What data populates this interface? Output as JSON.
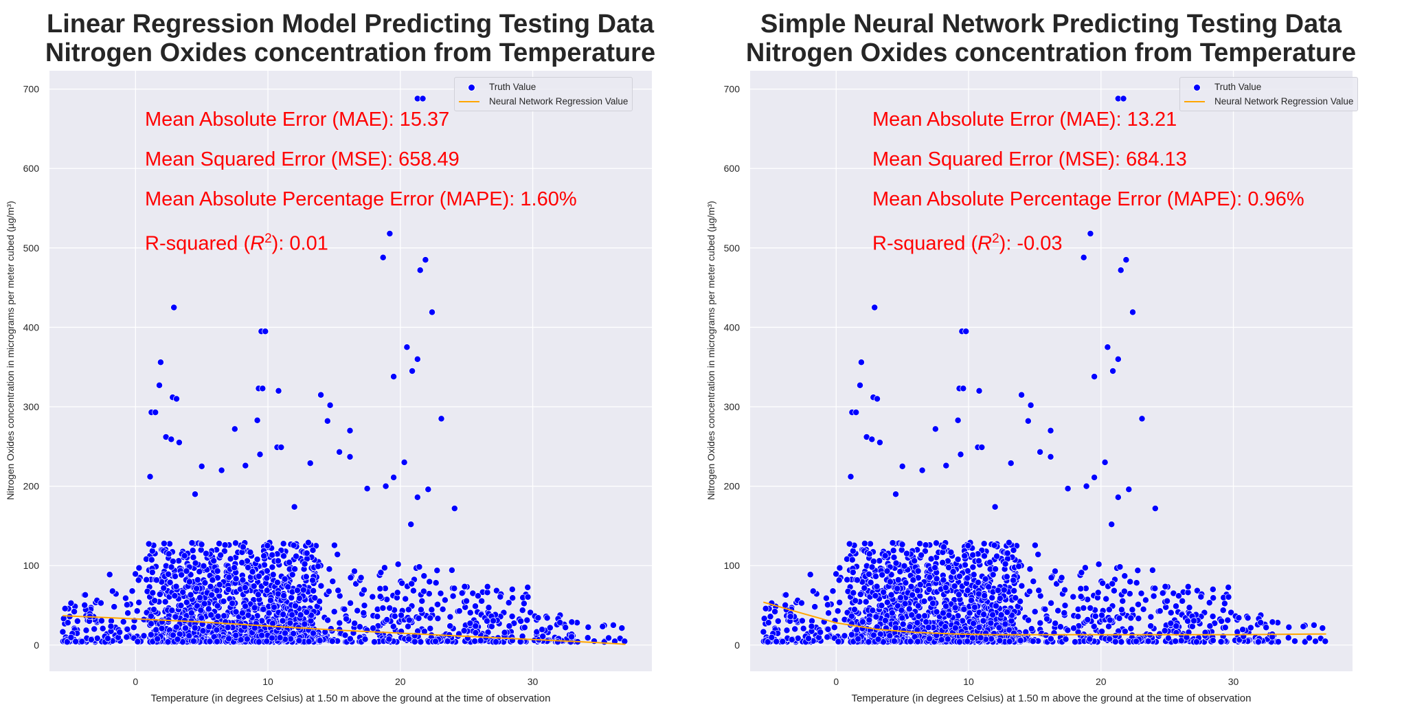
{
  "panels": [
    {
      "title_line1": "Linear Regression Model Predicting Testing Data",
      "title_line2": "Nitrogen Oxides concentration from Temperature",
      "xlabel": "Temperature (in degrees Celsius) at 1.50 m above the ground at the time of observation",
      "ylabel": "Nitrogen Oxides concentration in micrograms per meter cubed (µg/m³)",
      "legend": {
        "truth": "Truth Value",
        "regression": "Neural Network Regression Value"
      },
      "metrics": {
        "mae": "Mean Absolute Error (MAE): 15.37",
        "mse": "Mean Squared Error (MSE): 658.49",
        "mape": "Mean Absolute Percentage Error (MAPE): 1.60%",
        "r2_prefix": "R-squared (",
        "r2_var": "R",
        "r2_exp": "2",
        "r2_suffix": "): 0.01"
      }
    },
    {
      "title_line1": "Simple Neural Network Predicting Testing Data",
      "title_line2": "Nitrogen Oxides concentration from Temperature",
      "xlabel": "Temperature (in degrees Celsius) at 1.50 m above the ground at the time of observation",
      "ylabel": "Nitrogen Oxides concentration in micrograms per meter cubed (µg/m³)",
      "legend": {
        "truth": "Truth Value",
        "regression": "Neural Network Regression Value"
      },
      "metrics": {
        "mae": "Mean Absolute Error (MAE): 13.21",
        "mse": "Mean Squared Error (MSE): 684.13",
        "mape": "Mean Absolute Percentage Error (MAPE): 0.96%",
        "r2_prefix": "R-squared (",
        "r2_var": "R",
        "r2_exp": "2",
        "r2_suffix": "): -0.03"
      }
    }
  ],
  "chart_data": [
    {
      "type": "scatter",
      "title": "Linear Regression Model Predicting Testing Data Nitrogen Oxides concentration from Temperature",
      "xlabel": "Temperature (in degrees Celsius) at 1.50 m above the ground at the time of observation",
      "ylabel": "Nitrogen Oxides concentration in micrograms per meter cubed (µg/m³)",
      "xlim": [
        -6.5,
        39
      ],
      "ylim": [
        -33,
        723
      ],
      "xticks": [
        0,
        10,
        20,
        30
      ],
      "yticks": [
        0,
        100,
        200,
        300,
        400,
        500,
        600,
        700
      ],
      "grid": true,
      "legend_position": "top-right",
      "colors": {
        "truth": "#0000ff",
        "regression": "#ffa500",
        "metrics": "#ff0000",
        "background": "#eaeaf2"
      },
      "series": [
        {
          "name": "Truth Value",
          "kind": "scatter",
          "outliers": [
            [
              21.3,
              688
            ],
            [
              21.7,
              688
            ],
            [
              19.2,
              518
            ],
            [
              18.7,
              488
            ],
            [
              21.9,
              485
            ],
            [
              21.5,
              472
            ],
            [
              22.4,
              419
            ],
            [
              2.9,
              425
            ],
            [
              9.5,
              395
            ],
            [
              9.8,
              395
            ],
            [
              20.5,
              375
            ],
            [
              20.9,
              345
            ],
            [
              21.3,
              360
            ],
            [
              19.5,
              338
            ],
            [
              1.9,
              356
            ],
            [
              14.7,
              302
            ],
            [
              14.5,
              282
            ],
            [
              16.2,
              270
            ],
            [
              2.8,
              312
            ],
            [
              3.1,
              310
            ],
            [
              2.3,
              262
            ],
            [
              2.7,
              259
            ],
            [
              3.3,
              255
            ],
            [
              1.2,
              293
            ],
            [
              1.5,
              293
            ],
            [
              9.3,
              323
            ],
            [
              9.6,
              323
            ],
            [
              10.8,
              320
            ],
            [
              14.0,
              315
            ],
            [
              9.2,
              283
            ],
            [
              23.1,
              285
            ],
            [
              1.8,
              327
            ],
            [
              20.3,
              230
            ],
            [
              7.5,
              272
            ],
            [
              8.3,
              226
            ],
            [
              1.1,
              212
            ],
            [
              5.0,
              225
            ],
            [
              9.4,
              240
            ],
            [
              10.7,
              249
            ],
            [
              11.0,
              249
            ],
            [
              15.4,
              243
            ],
            [
              16.2,
              237
            ],
            [
              13.2,
              229
            ],
            [
              18.9,
              200
            ],
            [
              19.5,
              211
            ],
            [
              22.1,
              196
            ],
            [
              21.3,
              186
            ],
            [
              24.1,
              172
            ],
            [
              20.8,
              152
            ],
            [
              12.0,
              174
            ],
            [
              17.5,
              197
            ],
            [
              4.5,
              190
            ],
            [
              6.5,
              220
            ]
          ],
          "dense_core": {
            "x_range": [
              -5.5,
              37
            ],
            "y_range": [
              0,
              160
            ]
          }
        },
        {
          "name": "Neural Network Regression Value",
          "kind": "line",
          "x": [
            -5.5,
            0,
            5,
            10,
            15,
            20,
            25,
            30,
            35,
            37
          ],
          "y": [
            37,
            33,
            29,
            24,
            19,
            15,
            11,
            7,
            3,
            1
          ]
        }
      ]
    },
    {
      "type": "scatter",
      "title": "Simple Neural Network Predicting Testing Data Nitrogen Oxides concentration from Temperature",
      "xlabel": "Temperature (in degrees Celsius) at 1.50 m above the ground at the time of observation",
      "ylabel": "Nitrogen Oxides concentration in micrograms per meter cubed (µg/m³)",
      "xlim": [
        -6.5,
        39
      ],
      "ylim": [
        -33,
        723
      ],
      "xticks": [
        0,
        10,
        20,
        30
      ],
      "yticks": [
        0,
        100,
        200,
        300,
        400,
        500,
        600,
        700
      ],
      "grid": true,
      "legend_position": "top-right",
      "colors": {
        "truth": "#0000ff",
        "regression": "#ffa500",
        "metrics": "#ff0000",
        "background": "#eaeaf2"
      },
      "series": [
        {
          "name": "Truth Value",
          "kind": "scatter",
          "outliers": [
            [
              21.3,
              688
            ],
            [
              21.7,
              688
            ],
            [
              19.2,
              518
            ],
            [
              18.7,
              488
            ],
            [
              21.9,
              485
            ],
            [
              21.5,
              472
            ],
            [
              22.4,
              419
            ],
            [
              2.9,
              425
            ],
            [
              9.5,
              395
            ],
            [
              9.8,
              395
            ],
            [
              20.5,
              375
            ],
            [
              20.9,
              345
            ],
            [
              21.3,
              360
            ],
            [
              19.5,
              338
            ],
            [
              1.9,
              356
            ],
            [
              14.7,
              302
            ],
            [
              14.5,
              282
            ],
            [
              16.2,
              270
            ],
            [
              2.8,
              312
            ],
            [
              3.1,
              310
            ],
            [
              2.3,
              262
            ],
            [
              2.7,
              259
            ],
            [
              3.3,
              255
            ],
            [
              1.2,
              293
            ],
            [
              1.5,
              293
            ],
            [
              9.3,
              323
            ],
            [
              9.6,
              323
            ],
            [
              10.8,
              320
            ],
            [
              14.0,
              315
            ],
            [
              9.2,
              283
            ],
            [
              23.1,
              285
            ],
            [
              1.8,
              327
            ],
            [
              20.3,
              230
            ],
            [
              7.5,
              272
            ],
            [
              8.3,
              226
            ],
            [
              1.1,
              212
            ],
            [
              5.0,
              225
            ],
            [
              9.4,
              240
            ],
            [
              10.7,
              249
            ],
            [
              11.0,
              249
            ],
            [
              15.4,
              243
            ],
            [
              16.2,
              237
            ],
            [
              13.2,
              229
            ],
            [
              18.9,
              200
            ],
            [
              19.5,
              211
            ],
            [
              22.1,
              196
            ],
            [
              21.3,
              186
            ],
            [
              24.1,
              172
            ],
            [
              20.8,
              152
            ],
            [
              12.0,
              174
            ],
            [
              17.5,
              197
            ],
            [
              4.5,
              190
            ],
            [
              6.5,
              220
            ]
          ],
          "dense_core": {
            "x_range": [
              -5.5,
              37
            ],
            "y_range": [
              0,
              160
            ]
          }
        },
        {
          "name": "Neural Network Regression Value",
          "kind": "line",
          "x": [
            -5.5,
            -3,
            0,
            3,
            6,
            9,
            12,
            15,
            20,
            25,
            30,
            37
          ],
          "y": [
            54,
            42,
            28,
            20,
            16,
            14,
            13,
            13,
            13,
            13,
            13,
            14
          ]
        }
      ]
    }
  ]
}
